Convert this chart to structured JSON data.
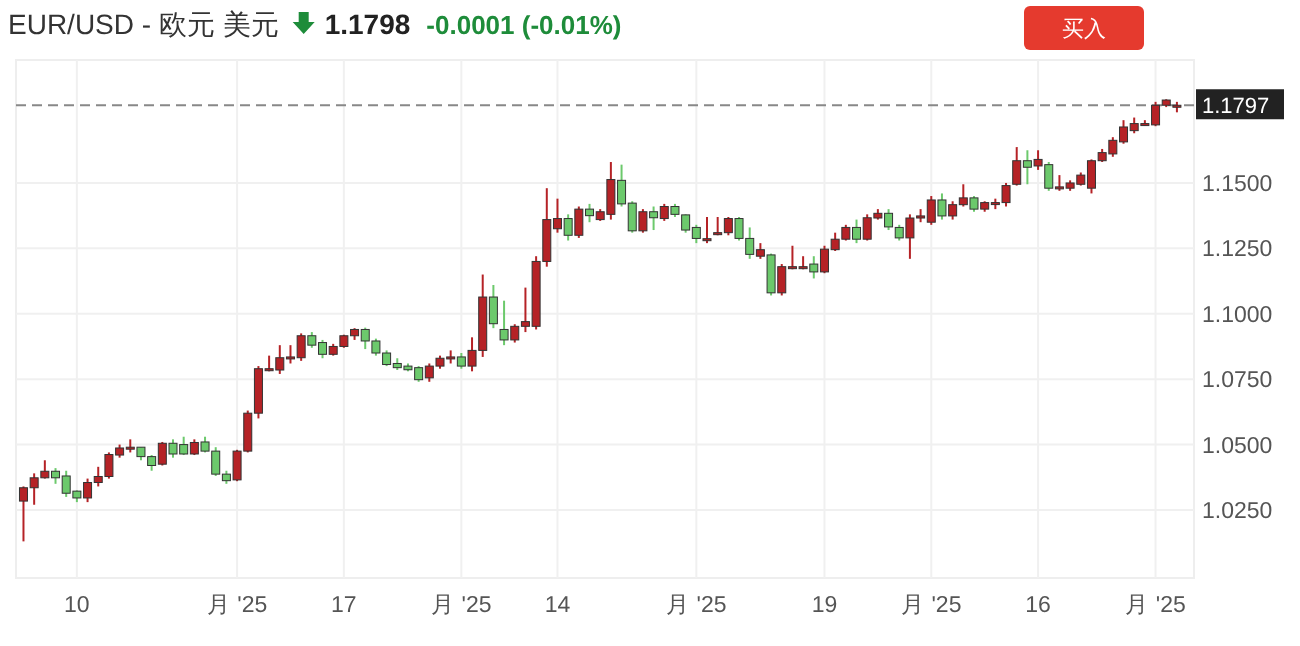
{
  "chart_data": {
    "type": "candlestick",
    "title": "EUR/USD - 欧元 美元",
    "subtitle": "1.1798",
    "annotations": [
      "-0.0001 (-0.01%)",
      "买入"
    ],
    "categories": [
      null,
      null,
      null,
      null,
      null,
      "10",
      null,
      null,
      null,
      null,
      null,
      null,
      null,
      null,
      null,
      null,
      null,
      null,
      null,
      null,
      "月 '25",
      null,
      null,
      null,
      null,
      null,
      null,
      null,
      null,
      null,
      "17",
      null,
      null,
      null,
      null,
      null,
      null,
      null,
      null,
      null,
      null,
      "月 '25",
      null,
      null,
      null,
      null,
      null,
      null,
      null,
      null,
      "14",
      null,
      null,
      null,
      null,
      null,
      null,
      null,
      null,
      null,
      null,
      null,
      null,
      "月 '25",
      null,
      null,
      null,
      null,
      null,
      null,
      null,
      null,
      null,
      null,
      null,
      "19",
      null,
      null,
      null,
      null,
      null,
      null,
      null,
      null,
      null,
      "月 '25",
      null,
      null,
      null,
      null,
      null,
      null,
      null,
      null,
      null,
      "16",
      null,
      null,
      null,
      null,
      null,
      null,
      null,
      null,
      null,
      null,
      "月 '25",
      null,
      null
    ],
    "ohlc": [
      [
        1.0284,
        1.034,
        1.013,
        1.0335
      ],
      [
        1.0335,
        1.039,
        1.027,
        1.0373
      ],
      [
        1.0373,
        1.044,
        1.037,
        1.0398
      ],
      [
        1.0398,
        1.041,
        1.035,
        1.0373
      ],
      [
        1.038,
        1.04,
        1.03,
        1.0314
      ],
      [
        1.0322,
        1.0325,
        1.028,
        1.0296
      ],
      [
        1.0296,
        1.037,
        1.028,
        1.0355
      ],
      [
        1.0355,
        1.0415,
        1.034,
        1.0378
      ],
      [
        1.0378,
        1.047,
        1.037,
        1.0462
      ],
      [
        1.046,
        1.05,
        1.045,
        1.0487
      ],
      [
        1.0487,
        1.052,
        1.047,
        1.049
      ],
      [
        1.049,
        1.049,
        1.044,
        1.0454
      ],
      [
        1.0454,
        1.046,
        1.04,
        1.042
      ],
      [
        1.0425,
        1.051,
        1.042,
        1.0505
      ],
      [
        1.0505,
        1.052,
        1.045,
        1.0464
      ],
      [
        1.05,
        1.053,
        1.046,
        1.0464
      ],
      [
        1.0464,
        1.052,
        1.046,
        1.0508
      ],
      [
        1.051,
        1.053,
        1.047,
        1.0475
      ],
      [
        1.0475,
        1.049,
        1.038,
        1.0387
      ],
      [
        1.0387,
        1.04,
        1.035,
        1.0362
      ],
      [
        1.0365,
        1.048,
        1.036,
        1.0475
      ],
      [
        1.0475,
        1.063,
        1.047,
        1.062
      ],
      [
        1.062,
        1.08,
        1.06,
        1.079
      ],
      [
        1.0785,
        1.084,
        1.078,
        1.079
      ],
      [
        1.0785,
        1.088,
        1.077,
        1.0832
      ],
      [
        1.083,
        1.088,
        1.081,
        1.0835
      ],
      [
        1.0832,
        1.0925,
        1.082,
        1.0916
      ],
      [
        1.0916,
        1.093,
        1.087,
        1.088
      ],
      [
        1.089,
        1.09,
        1.083,
        1.0845
      ],
      [
        1.0845,
        1.0885,
        1.084,
        1.0875
      ],
      [
        1.0875,
        1.092,
        1.087,
        1.0916
      ],
      [
        1.0916,
        1.0945,
        1.09,
        1.094
      ],
      [
        1.094,
        1.0947,
        1.0865,
        1.0896
      ],
      [
        1.0896,
        1.0905,
        1.084,
        1.085
      ],
      [
        1.085,
        1.086,
        1.08,
        1.0806
      ],
      [
        1.081,
        1.083,
        1.0785,
        1.0794
      ],
      [
        1.08,
        1.081,
        1.078,
        1.0786
      ],
      [
        1.0794,
        1.08,
        1.074,
        1.0748
      ],
      [
        1.0755,
        1.081,
        1.074,
        1.08
      ],
      [
        1.08,
        1.084,
        1.079,
        1.083
      ],
      [
        1.083,
        1.086,
        1.081,
        1.0835
      ],
      [
        1.0835,
        1.085,
        1.079,
        1.08
      ],
      [
        1.08,
        1.091,
        1.078,
        1.086
      ],
      [
        1.086,
        1.115,
        1.0835,
        1.1064
      ],
      [
        1.1064,
        1.111,
        1.0945,
        1.0962
      ],
      [
        1.094,
        1.105,
        1.088,
        1.09
      ],
      [
        1.09,
        1.096,
        1.089,
        1.0952
      ],
      [
        1.0952,
        1.11,
        1.093,
        1.097
      ],
      [
        1.0952,
        1.122,
        1.094,
        1.12
      ],
      [
        1.12,
        1.148,
        1.118,
        1.136
      ],
      [
        1.1325,
        1.144,
        1.131,
        1.1364
      ],
      [
        1.1364,
        1.138,
        1.128,
        1.13
      ],
      [
        1.13,
        1.141,
        1.129,
        1.14
      ],
      [
        1.14,
        1.142,
        1.135,
        1.1375
      ],
      [
        1.136,
        1.14,
        1.1355,
        1.139
      ],
      [
        1.138,
        1.158,
        1.136,
        1.1513
      ],
      [
        1.151,
        1.157,
        1.141,
        1.142
      ],
      [
        1.1423,
        1.143,
        1.131,
        1.1317
      ],
      [
        1.1317,
        1.14,
        1.131,
        1.139
      ],
      [
        1.139,
        1.141,
        1.132,
        1.1367
      ],
      [
        1.1364,
        1.142,
        1.1355,
        1.141
      ],
      [
        1.141,
        1.142,
        1.137,
        1.138
      ],
      [
        1.1378,
        1.138,
        1.131,
        1.132
      ],
      [
        1.133,
        1.134,
        1.127,
        1.1288
      ],
      [
        1.1287,
        1.137,
        1.127,
        1.1287
      ],
      [
        1.131,
        1.137,
        1.13,
        1.131
      ],
      [
        1.131,
        1.137,
        1.13,
        1.1364
      ],
      [
        1.1364,
        1.137,
        1.128,
        1.1288
      ],
      [
        1.1288,
        1.133,
        1.121,
        1.1227
      ],
      [
        1.122,
        1.127,
        1.121,
        1.1245
      ],
      [
        1.1225,
        1.123,
        1.107,
        1.108
      ],
      [
        1.108,
        1.119,
        1.107,
        1.118
      ],
      [
        1.118,
        1.126,
        1.117,
        1.118
      ],
      [
        1.118,
        1.122,
        1.117,
        1.118
      ],
      [
        1.119,
        1.122,
        1.1135,
        1.116
      ],
      [
        1.116,
        1.126,
        1.1155,
        1.1247
      ],
      [
        1.1245,
        1.131,
        1.124,
        1.1285
      ],
      [
        1.1285,
        1.134,
        1.128,
        1.133
      ],
      [
        1.133,
        1.136,
        1.127,
        1.1285
      ],
      [
        1.1285,
        1.138,
        1.128,
        1.1367
      ],
      [
        1.1366,
        1.14,
        1.136,
        1.1384
      ],
      [
        1.1384,
        1.14,
        1.132,
        1.1332
      ],
      [
        1.133,
        1.134,
        1.128,
        1.129
      ],
      [
        1.129,
        1.138,
        1.121,
        1.1366
      ],
      [
        1.1366,
        1.14,
        1.135,
        1.1374
      ],
      [
        1.135,
        1.145,
        1.134,
        1.1435
      ],
      [
        1.1435,
        1.146,
        1.136,
        1.1374
      ],
      [
        1.1374,
        1.143,
        1.136,
        1.1417
      ],
      [
        1.1417,
        1.1495,
        1.141,
        1.1443
      ],
      [
        1.1443,
        1.145,
        1.139,
        1.14
      ],
      [
        1.14,
        1.143,
        1.139,
        1.1425
      ],
      [
        1.1425,
        1.144,
        1.14,
        1.1425
      ],
      [
        1.1425,
        1.15,
        1.141,
        1.149
      ],
      [
        1.1495,
        1.1637,
        1.149,
        1.1585
      ],
      [
        1.1585,
        1.1625,
        1.1495,
        1.156
      ],
      [
        1.1565,
        1.1625,
        1.155,
        1.159
      ],
      [
        1.157,
        1.158,
        1.147,
        1.148
      ],
      [
        1.1485,
        1.153,
        1.147,
        1.1485
      ],
      [
        1.148,
        1.151,
        1.147,
        1.15
      ],
      [
        1.1495,
        1.154,
        1.149,
        1.153
      ],
      [
        1.148,
        1.159,
        1.146,
        1.1585
      ],
      [
        1.1585,
        1.163,
        1.158,
        1.1616
      ],
      [
        1.1611,
        1.1675,
        1.16,
        1.1663
      ],
      [
        1.1657,
        1.174,
        1.165,
        1.1714
      ],
      [
        1.17,
        1.175,
        1.169,
        1.1727
      ],
      [
        1.1727,
        1.174,
        1.172,
        1.1727
      ],
      [
        1.1722,
        1.181,
        1.1717,
        1.1797
      ],
      [
        1.1797,
        1.182,
        1.179,
        1.1817
      ],
      [
        1.1797,
        1.181,
        1.177,
        1.1797
      ]
    ],
    "colors": [
      "#b52226",
      "#b52226",
      "#b52226",
      "#6cc96c",
      "#6cc96c",
      "#6cc96c",
      "#b52226",
      "#b52226",
      "#b52226",
      "#b52226",
      "#b52226",
      "#6cc96c",
      "#6cc96c",
      "#b52226",
      "#6cc96c",
      "#6cc96c",
      "#b52226",
      "#6cc96c",
      "#6cc96c",
      "#6cc96c",
      "#b52226",
      "#b52226",
      "#b52226",
      "#b52226",
      "#b52226",
      "#b52226",
      "#b52226",
      "#6cc96c",
      "#6cc96c",
      "#b52226",
      "#b52226",
      "#b52226",
      "#6cc96c",
      "#6cc96c",
      "#6cc96c",
      "#6cc96c",
      "#6cc96c",
      "#6cc96c",
      "#b52226",
      "#b52226",
      "#b52226",
      "#6cc96c",
      "#b52226",
      "#b52226",
      "#6cc96c",
      "#6cc96c",
      "#b52226",
      "#b52226",
      "#b52226",
      "#b52226",
      "#b52226",
      "#6cc96c",
      "#b52226",
      "#6cc96c",
      "#b52226",
      "#b52226",
      "#6cc96c",
      "#6cc96c",
      "#b52226",
      "#6cc96c",
      "#b52226",
      "#6cc96c",
      "#6cc96c",
      "#6cc96c",
      "#b52226",
      "#b52226",
      "#b52226",
      "#6cc96c",
      "#6cc96c",
      "#b52226",
      "#6cc96c",
      "#b52226",
      "#b52226",
      "#b52226",
      "#6cc96c",
      "#b52226",
      "#b52226",
      "#b52226",
      "#6cc96c",
      "#b52226",
      "#b52226",
      "#6cc96c",
      "#6cc96c",
      "#b52226",
      "#b52226",
      "#b52226",
      "#6cc96c",
      "#b52226",
      "#b52226",
      "#6cc96c",
      "#b52226",
      "#b52226",
      "#b52226",
      "#b52226",
      "#6cc96c",
      "#b52226",
      "#6cc96c",
      "#b52226",
      "#b52226",
      "#b52226",
      "#b52226",
      "#b52226",
      "#b52226",
      "#b52226",
      "#b52226",
      "#b52226",
      "#b52226",
      "#b52226",
      "#b52226"
    ],
    "ylim": [
      0.999,
      1.197
    ],
    "yticks": [
      {
        "value": 1.025,
        "label": "1.0250"
      },
      {
        "value": 1.05,
        "label": "1.0500"
      },
      {
        "value": 1.075,
        "label": "1.0750"
      },
      {
        "value": 1.1,
        "label": "1.1000"
      },
      {
        "value": 1.125,
        "label": "1.1250"
      },
      {
        "value": 1.15,
        "label": "1.1500"
      }
    ],
    "grid": true,
    "ref_lines": [
      {
        "axis": "y",
        "value": 1.1797,
        "label": "1.1797",
        "color": "#888888",
        "line_style": "dashed"
      }
    ]
  }
}
